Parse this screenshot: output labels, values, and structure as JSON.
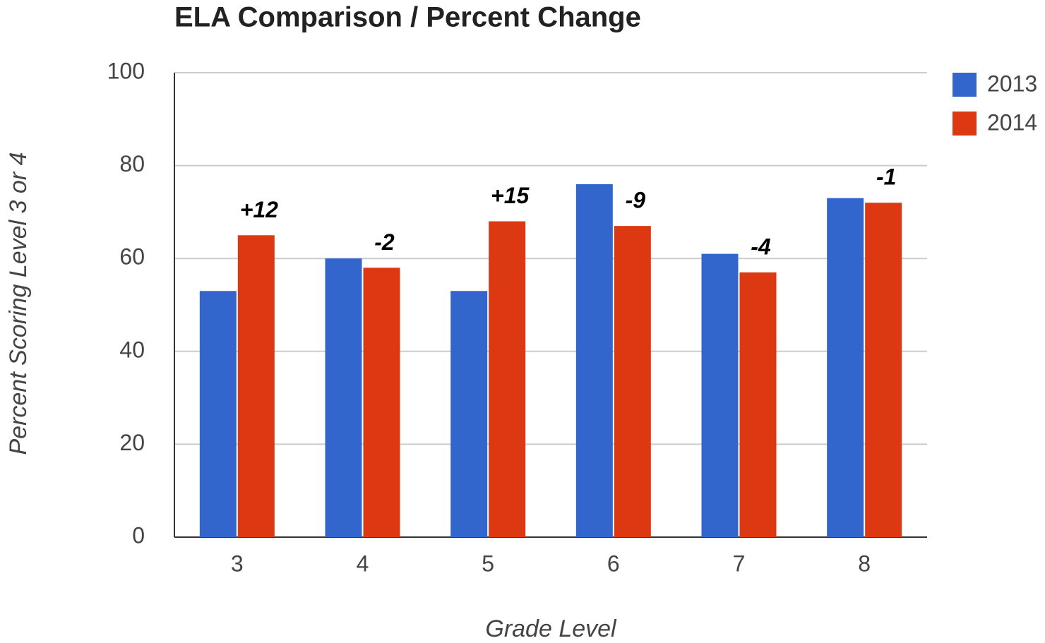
{
  "chart_data": {
    "type": "bar",
    "title": "ELA Comparison / Percent Change",
    "x_label": "Grade Level",
    "y_label": "Percent Scoring Level 3 or 4",
    "categories": [
      "3",
      "4",
      "5",
      "6",
      "7",
      "8"
    ],
    "series": [
      {
        "name": "2013",
        "color": "#3366cc",
        "values": [
          53,
          60,
          53,
          76,
          61,
          73
        ]
      },
      {
        "name": "2014",
        "color": "#dc3912",
        "values": [
          65,
          58,
          68,
          67,
          57,
          72
        ]
      }
    ],
    "annotations": [
      "+12",
      "-2",
      "+15",
      "-9",
      "-4",
      "-1"
    ],
    "ylim": [
      0,
      100
    ],
    "yticks": [
      0,
      20,
      40,
      60,
      80,
      100
    ],
    "grid": true,
    "legend": "right"
  }
}
